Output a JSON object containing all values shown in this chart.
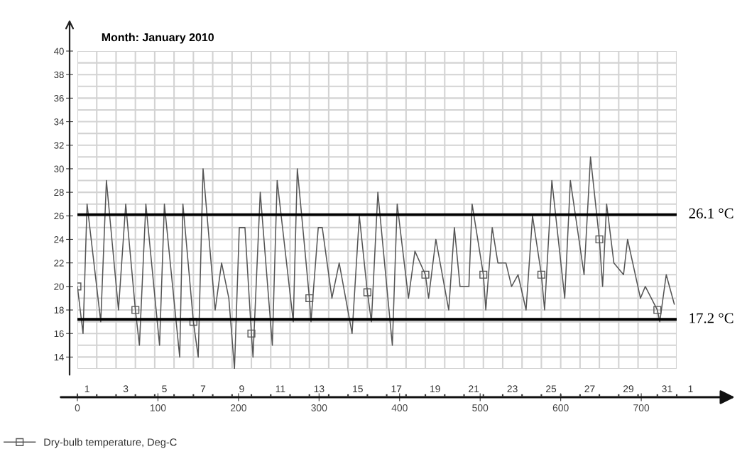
{
  "chart_data": {
    "type": "line",
    "title": "Month: January 2010",
    "x": [
      0,
      7,
      12,
      29,
      36,
      51,
      60,
      72,
      77,
      85,
      102,
      108,
      127,
      131,
      144,
      150,
      156,
      171,
      179,
      188,
      195,
      201,
      208,
      216,
      218,
      227,
      242,
      248,
      268,
      273,
      288,
      290,
      299,
      304,
      316,
      325,
      341,
      350,
      360,
      365,
      373,
      391,
      397,
      411,
      419,
      432,
      436,
      445,
      461,
      468,
      475,
      486,
      490,
      504,
      507,
      515,
      522,
      532,
      539,
      547,
      557,
      565,
      576,
      580,
      589,
      605,
      612,
      629,
      637,
      648,
      652,
      657,
      666,
      678,
      683,
      699,
      705,
      720,
      723,
      731,
      741
    ],
    "series": [
      {
        "name": "Dry-bulb temperature, Deg-C",
        "color": "#555555",
        "values": [
          20,
          16,
          27,
          17,
          29,
          18,
          27,
          18,
          15,
          27,
          15,
          27,
          14,
          27,
          17,
          14,
          30,
          18,
          22,
          19,
          13,
          25,
          25,
          16,
          14,
          28,
          15,
          29,
          17,
          30,
          19,
          17,
          25,
          25,
          19,
          22,
          16,
          26,
          19.5,
          17,
          28,
          15,
          27,
          19,
          23,
          21,
          19,
          24,
          18,
          25,
          20,
          20,
          27,
          21,
          18,
          25,
          22,
          22,
          20,
          21,
          18,
          26,
          21,
          18,
          29,
          19,
          29,
          21,
          31,
          24,
          20,
          27,
          22,
          21,
          24,
          19,
          20,
          18,
          17,
          21,
          18.5
        ]
      },
      {
        "type": "scatter",
        "marker": "square",
        "color": "#555555",
        "x": [
          0,
          72,
          144,
          216,
          288,
          360,
          432,
          504,
          576,
          648,
          720
        ],
        "values": [
          20,
          18,
          17,
          16,
          19,
          19.5,
          21,
          21,
          21,
          24,
          18
        ]
      }
    ],
    "xlim": [
      0,
      744
    ],
    "xticks": [
      0,
      100,
      200,
      300,
      400,
      500,
      600,
      700
    ],
    "x2lim": [
      "2010-01-01",
      "2010-02-01"
    ],
    "x2ticks": [
      {
        "value": "2010-01-01",
        "label": null
      },
      {
        "value": "2010-01-02",
        "label": null
      },
      {
        "value": "2010-01-03",
        "label": null
      },
      {
        "value": "2010-01-04",
        "label": null
      },
      {
        "value": "2010-01-05",
        "label": null
      },
      {
        "value": "2010-01-06",
        "label": null
      },
      {
        "value": "2010-01-07",
        "label": null
      },
      {
        "value": "2010-01-08",
        "label": null
      },
      {
        "value": "2010-01-09",
        "label": null
      },
      {
        "value": "2010-01-10",
        "label": null
      },
      {
        "value": "2010-01-11",
        "label": null
      },
      {
        "value": "2010-01-12",
        "label": null
      },
      {
        "value": "2010-01-13",
        "label": null
      },
      {
        "value": "2010-01-14",
        "label": null
      },
      {
        "value": "2010-01-15",
        "label": null
      },
      {
        "value": "2010-01-16",
        "label": null
      },
      {
        "value": "2010-01-17",
        "label": null
      },
      {
        "value": "2010-01-18",
        "label": null
      },
      {
        "value": "2010-01-19",
        "label": null
      },
      {
        "value": "2010-01-20",
        "label": null
      },
      {
        "value": "2010-01-21",
        "label": null
      },
      {
        "value": "2010-01-22",
        "label": null
      },
      {
        "value": "2010-01-23",
        "label": null
      },
      {
        "value": "2010-01-24",
        "label": null
      },
      {
        "value": "2010-01-25",
        "label": null
      },
      {
        "value": "2010-01-26",
        "label": null
      },
      {
        "value": "2010-01-27",
        "label": null
      },
      {
        "value": "2010-01-28",
        "label": null
      },
      {
        "value": "2010-01-29",
        "label": null
      },
      {
        "value": "2010-01-30",
        "label": null
      },
      {
        "value": "2010-01-31",
        "label": null
      },
      {
        "value": "2010-02-01",
        "label": null
      },
      {
        "value": "2010-01-01T12:00",
        "label": "1"
      },
      {
        "value": "2010-01-03T12:00",
        "label": "3"
      },
      {
        "value": "2010-01-05T12:00",
        "label": "5"
      },
      {
        "value": "2010-01-07T12:00",
        "label": "7"
      },
      {
        "value": "2010-01-09T12:00",
        "label": "9"
      },
      {
        "value": "2010-01-11T12:00",
        "label": "11"
      },
      {
        "value": "2010-01-13T12:00",
        "label": "13"
      },
      {
        "value": "2010-01-15T12:00",
        "label": "15"
      },
      {
        "value": "2010-01-17T12:00",
        "label": "17"
      },
      {
        "value": "2010-01-19T12:00",
        "label": "19"
      },
      {
        "value": "2010-01-21T12:00",
        "label": "21"
      },
      {
        "value": "2010-01-23T12:00",
        "label": "23"
      },
      {
        "value": "2010-01-25T12:00",
        "label": "25"
      },
      {
        "value": "2010-01-27T12:00",
        "label": "27"
      },
      {
        "value": "2010-01-29T12:00",
        "label": "29"
      },
      {
        "value": "2010-01-31T12:00",
        "label": "31"
      }
    ],
    "annotations": [
      "1"
    ],
    "ylim": [
      13,
      40
    ],
    "yticks": [
      14,
      16,
      18,
      20,
      22,
      24,
      26,
      28,
      30,
      32,
      34,
      36,
      38,
      40
    ],
    "ref_lines": [
      {
        "axis": "y",
        "value": 26.1,
        "label": "26.1 °C",
        "color": "#000000"
      },
      {
        "axis": "y",
        "value": 17.2,
        "label": "17.2 °C",
        "color": "#000000"
      }
    ],
    "grid": true,
    "legend": "bottom left"
  }
}
